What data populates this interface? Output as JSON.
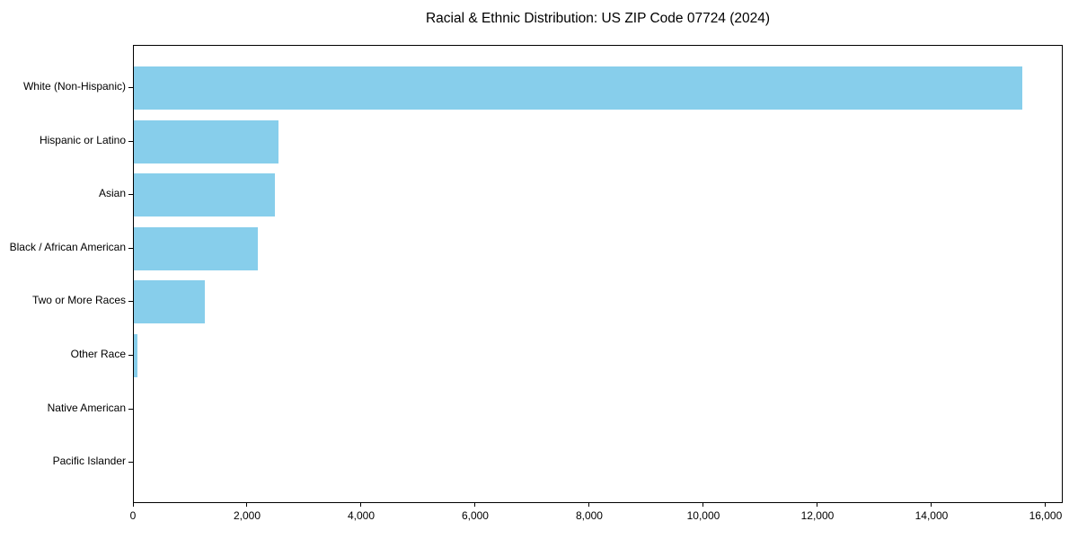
{
  "figure": {
    "background": "#ffffff"
  },
  "chart_data": {
    "type": "bar",
    "orientation": "horizontal",
    "title": "Racial & Ethnic Distribution: US ZIP Code 07724 (2024)",
    "categories": [
      "White (Non-Hispanic)",
      "Hispanic or Latino",
      "Asian",
      "Black / African American",
      "Two or More Races",
      "Other Race",
      "Native American",
      "Pacific Islander"
    ],
    "values": [
      15575,
      2540,
      2470,
      2170,
      1240,
      60,
      0,
      0
    ],
    "xlabel": "",
    "ylabel": "",
    "xlim": [
      0,
      16300
    ],
    "x_ticks": [
      0,
      2000,
      4000,
      6000,
      8000,
      10000,
      12000,
      14000,
      16000
    ],
    "x_tick_labels": [
      "0",
      "2,000",
      "4,000",
      "6,000",
      "8,000",
      "10,000",
      "12,000",
      "14,000",
      "16,000"
    ],
    "bar_color": "#87CEEB",
    "axis_color": "#000000",
    "text_color": "#000000",
    "grid": false,
    "legend": null
  }
}
